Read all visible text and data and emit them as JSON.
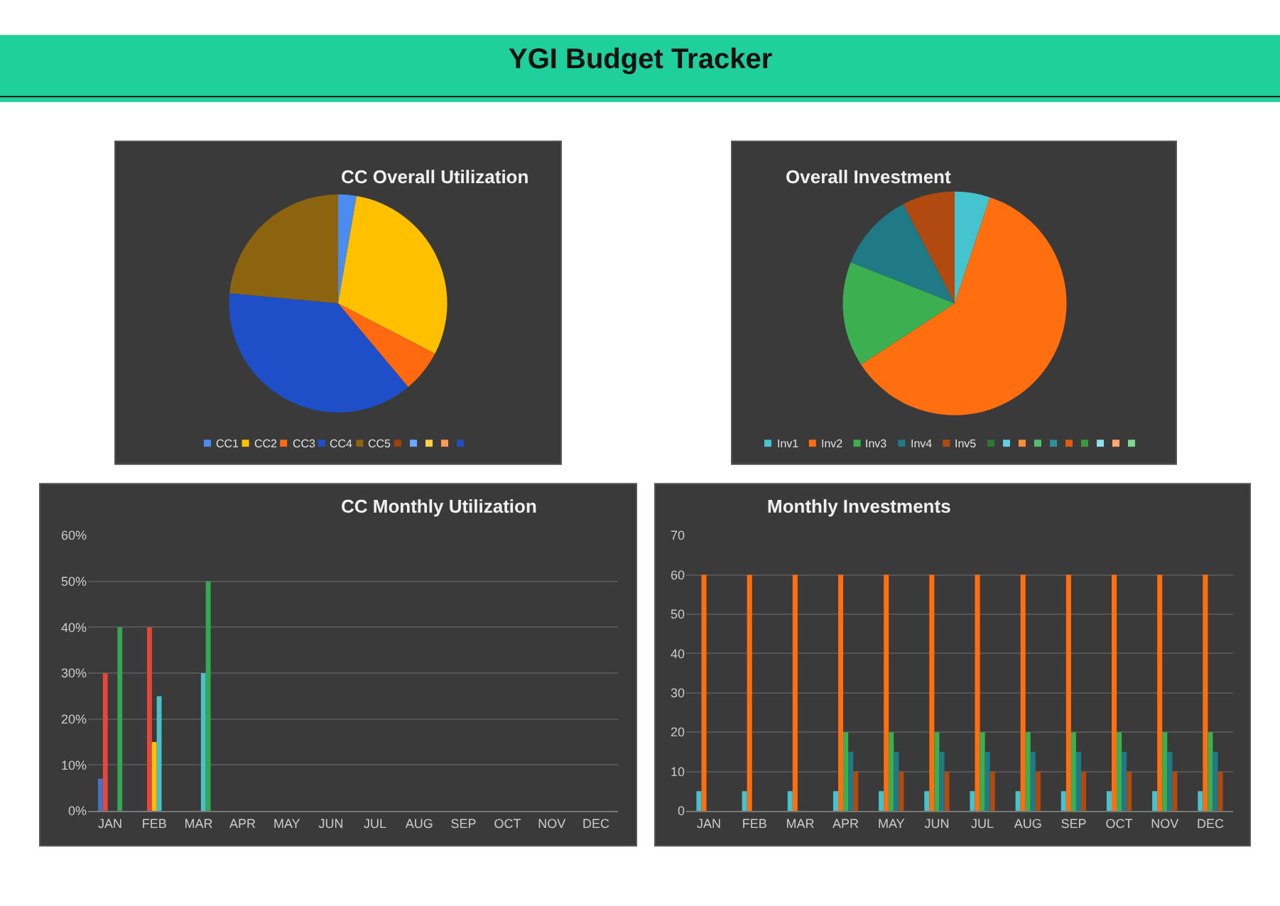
{
  "chart_data": [
    {
      "type": "other",
      "title": "YGI Budget Tracker"
    },
    {
      "type": "pie",
      "title": "CC Overall Utilization",
      "legend": "bottom",
      "categories": [
        "CC1",
        "CC2",
        "CC3",
        "CC4",
        "CC5",
        null,
        null,
        null,
        null,
        null
      ],
      "values": [
        2.7,
        29.9,
        6.3,
        37.6,
        23.5,
        0,
        0,
        0,
        0,
        0
      ],
      "colors": [
        "#4a8cf0",
        "#ffc000",
        "#ff6a10",
        "#1f4fc8",
        "#8c6410",
        "#a0400e",
        "#6fa8ff",
        "#ffd040",
        "#ff9a50",
        "#2050c0"
      ]
    },
    {
      "type": "pie",
      "title": "Overall Investment",
      "legend": "bottom",
      "categories": [
        "Inv1",
        "Inv2",
        "Inv3",
        "Inv4",
        "Inv5",
        null,
        null,
        null,
        null,
        null,
        null,
        null,
        null,
        null,
        null
      ],
      "values": [
        5.1,
        60.7,
        15.2,
        11.4,
        7.6,
        0,
        0,
        0,
        0,
        0,
        0,
        0,
        0,
        0,
        0
      ],
      "colors": [
        "#45c4d0",
        "#ff6f10",
        "#3cb050",
        "#1f7a86",
        "#b04a10",
        "#2a7a30",
        "#60d0e0",
        "#ff8a40",
        "#50c070",
        "#30909a",
        "#e05a10",
        "#3a9a40",
        "#90e0ea",
        "#ffa870",
        "#80d890"
      ]
    },
    {
      "type": "bar",
      "title": "CC Monthly Utilization",
      "grid": "y",
      "categories": [
        "JAN",
        "FEB",
        "MAR",
        "APR",
        "MAY",
        "JUN",
        "JUL",
        "AUG",
        "SEP",
        "OCT",
        "NOV",
        "DEC"
      ],
      "ylim": [
        0,
        60
      ],
      "yticks": [
        {
          "value": 0,
          "label": "0%"
        },
        {
          "value": 10,
          "label": "10%"
        },
        {
          "value": 20,
          "label": "20%"
        },
        {
          "value": 30,
          "label": "30%"
        },
        {
          "value": 40,
          "label": "40%"
        },
        {
          "value": 50,
          "label": "50%"
        },
        {
          "value": 60,
          "label": "60%"
        }
      ],
      "series": [
        {
          "color": "#4472c4",
          "values": [
            7,
            0,
            0,
            0,
            0,
            0,
            0,
            0,
            0,
            0,
            0,
            0
          ]
        },
        {
          "color": "#e8453c",
          "values": [
            30,
            40,
            0,
            0,
            0,
            0,
            0,
            0,
            0,
            0,
            0,
            0
          ]
        },
        {
          "color": "#ffc000",
          "values": [
            0,
            15,
            0,
            0,
            0,
            0,
            0,
            0,
            0,
            0,
            0,
            0
          ]
        },
        {
          "color": "#4bc0c8",
          "values": [
            0,
            25,
            30,
            0,
            0,
            0,
            0,
            0,
            0,
            0,
            0,
            0
          ]
        },
        {
          "color": "#34a853",
          "values": [
            40,
            0,
            50,
            0,
            0,
            0,
            0,
            0,
            0,
            0,
            0,
            0
          ]
        }
      ]
    },
    {
      "type": "bar",
      "title": "Monthly Investments",
      "grid": "y",
      "categories": [
        "JAN",
        "FEB",
        "MAR",
        "APR",
        "MAY",
        "JUN",
        "JUL",
        "AUG",
        "SEP",
        "OCT",
        "NOV",
        "DEC"
      ],
      "ylim": [
        0,
        70
      ],
      "yticks": [
        0,
        10,
        20,
        30,
        40,
        50,
        60,
        70
      ],
      "series": [
        {
          "color": "#45c4d0",
          "values": [
            5,
            5,
            5,
            5,
            5,
            5,
            5,
            5,
            5,
            5,
            5,
            5
          ]
        },
        {
          "color": "#ff6f10",
          "values": [
            60,
            60,
            60,
            60,
            60,
            60,
            60,
            60,
            60,
            60,
            60,
            60
          ]
        },
        {
          "color": "#3cb050",
          "values": [
            0,
            0,
            0,
            20,
            20,
            20,
            20,
            20,
            20,
            20,
            20,
            20
          ]
        },
        {
          "color": "#1f7a86",
          "values": [
            0,
            0,
            0,
            15,
            15,
            15,
            15,
            15,
            15,
            15,
            15,
            15
          ]
        },
        {
          "color": "#b04a10",
          "values": [
            0,
            0,
            0,
            10,
            10,
            10,
            10,
            10,
            10,
            10,
            10,
            10
          ]
        }
      ]
    }
  ]
}
